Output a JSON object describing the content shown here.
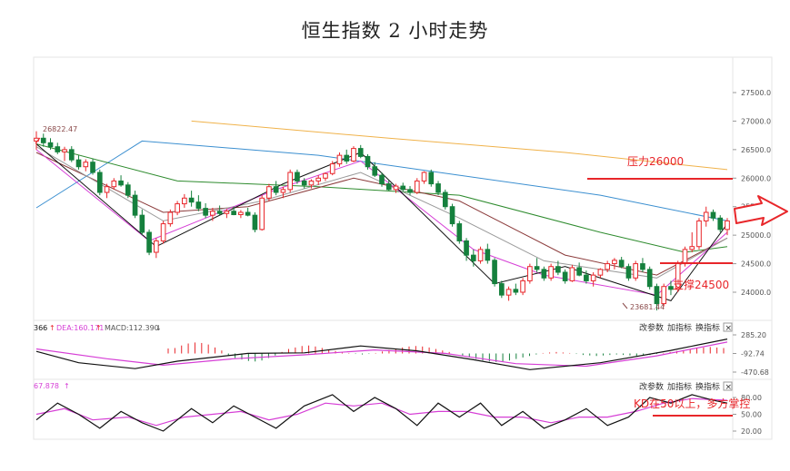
{
  "title": "恒生指数 2 小时走势",
  "colors": {
    "up": "#e8262a",
    "down": "#15803d",
    "ma_fast": "#111111",
    "ma_pink": "#d63fd6",
    "ma_brown": "#8b3a3a",
    "ma_green": "#2e8b2e",
    "ma_blue": "#3b8fd0",
    "ma_orange": "#f0b24a",
    "gray_ma": "#9a9a9a",
    "annotation": "#e8262a"
  },
  "controls": {
    "param": "改参数",
    "add": "加指标",
    "swap": "换指标",
    "close": "×"
  },
  "macd_header": {
    "dif": "366",
    "dea": "DEA:160.171",
    "macd": "MACD:112.390"
  },
  "kd_header": "67.878",
  "annotations": {
    "resistance": "压力26000",
    "support": "支撑24500",
    "kd_note": "KD在50以上，多方掌控",
    "high_label": "26822.47",
    "low_label": "23681.44"
  },
  "chart_data": [
    {
      "type": "candlestick",
      "title": "恒生指数 2 小时走势",
      "y_ticks": [
        "27500.0",
        "27000.0",
        "26500.0",
        "26000.0",
        "25500.0",
        "25000.0",
        "24500.0",
        "24000.0"
      ],
      "ylim": [
        23600,
        27950
      ],
      "grid": false,
      "annotated_high": 26822.47,
      "annotated_low": 23681.44,
      "resistance_level": 26000,
      "support_level": 24500,
      "candles": [
        [
          26650,
          26822,
          26500,
          26700
        ],
        [
          26700,
          26780,
          26550,
          26620
        ],
        [
          26620,
          26700,
          26500,
          26550
        ],
        [
          26550,
          26620,
          26420,
          26460
        ],
        [
          26460,
          26550,
          26300,
          26500
        ],
        [
          26500,
          26560,
          26280,
          26320
        ],
        [
          26320,
          26400,
          26150,
          26200
        ],
        [
          26200,
          26330,
          26120,
          26280
        ],
        [
          26280,
          26340,
          26060,
          26100
        ],
        [
          26100,
          26150,
          25700,
          25750
        ],
        [
          25750,
          25900,
          25650,
          25850
        ],
        [
          25850,
          26000,
          25800,
          25950
        ],
        [
          25950,
          26050,
          25850,
          25880
        ],
        [
          25880,
          25930,
          25650,
          25700
        ],
        [
          25700,
          25780,
          25300,
          25350
        ],
        [
          25350,
          25450,
          25000,
          25050
        ],
        [
          25050,
          25100,
          24650,
          24700
        ],
        [
          24700,
          24950,
          24600,
          24900
        ],
        [
          24900,
          25250,
          24850,
          25200
        ],
        [
          25200,
          25450,
          25150,
          25400
        ],
        [
          25400,
          25600,
          25350,
          25550
        ],
        [
          25550,
          25720,
          25480,
          25650
        ],
        [
          25650,
          25780,
          25500,
          25580
        ],
        [
          25580,
          25700,
          25420,
          25470
        ],
        [
          25470,
          25560,
          25300,
          25350
        ],
        [
          25350,
          25480,
          25250,
          25420
        ],
        [
          25420,
          25520,
          25350,
          25380
        ],
        [
          25380,
          25460,
          25300,
          25420
        ],
        [
          25420,
          25500,
          25350,
          25360
        ],
        [
          25360,
          25440,
          25300,
          25400
        ],
        [
          25400,
          25480,
          25330,
          25350
        ],
        [
          25350,
          25400,
          25050,
          25100
        ],
        [
          25100,
          25700,
          25080,
          25650
        ],
        [
          25650,
          25900,
          25600,
          25850
        ],
        [
          25850,
          25950,
          25700,
          25750
        ],
        [
          25750,
          25850,
          25650,
          25800
        ],
        [
          25800,
          26150,
          25750,
          26100
        ],
        [
          26100,
          26150,
          25900,
          25950
        ],
        [
          25950,
          26000,
          25820,
          25880
        ],
        [
          25880,
          25980,
          25820,
          25950
        ],
        [
          25950,
          26050,
          25880,
          26000
        ],
        [
          26000,
          26100,
          25950,
          26080
        ],
        [
          26080,
          26300,
          26050,
          26250
        ],
        [
          26250,
          26450,
          26200,
          26400
        ],
        [
          26400,
          26500,
          26250,
          26300
        ],
        [
          26300,
          26560,
          26280,
          26520
        ],
        [
          26520,
          26580,
          26350,
          26380
        ],
        [
          26380,
          26420,
          26150,
          26200
        ],
        [
          26200,
          26280,
          26020,
          26050
        ],
        [
          26050,
          26100,
          25850,
          25900
        ],
        [
          25900,
          25960,
          25780,
          25800
        ],
        [
          25800,
          25900,
          25740,
          25860
        ],
        [
          25860,
          25920,
          25760,
          25800
        ],
        [
          25800,
          25860,
          25700,
          25750
        ],
        [
          25750,
          26000,
          25720,
          25950
        ],
        [
          25950,
          26120,
          25900,
          26100
        ],
        [
          26100,
          26150,
          25850,
          25900
        ],
        [
          25900,
          25950,
          25700,
          25750
        ],
        [
          25750,
          25800,
          25450,
          25500
        ],
        [
          25500,
          25550,
          25150,
          25200
        ],
        [
          25200,
          25250,
          24850,
          24900
        ],
        [
          24900,
          24950,
          24550,
          24650
        ],
        [
          24650,
          24750,
          24450,
          24550
        ],
        [
          24550,
          24800,
          24500,
          24750
        ],
        [
          24750,
          24850,
          24500,
          24560
        ],
        [
          24560,
          24600,
          24100,
          24150
        ],
        [
          24150,
          24200,
          23900,
          23950
        ],
        [
          23950,
          24100,
          23850,
          24050
        ],
        [
          24050,
          24150,
          23950,
          24000
        ],
        [
          24000,
          24250,
          23950,
          24200
        ],
        [
          24200,
          24500,
          24150,
          24450
        ],
        [
          24450,
          24600,
          24350,
          24400
        ],
        [
          24400,
          24450,
          24200,
          24250
        ],
        [
          24250,
          24500,
          24200,
          24450
        ],
        [
          24450,
          24550,
          24300,
          24350
        ],
        [
          24350,
          24400,
          24150,
          24200
        ],
        [
          24200,
          24480,
          24180,
          24430
        ],
        [
          24430,
          24520,
          24280,
          24300
        ],
        [
          24300,
          24380,
          24150,
          24200
        ],
        [
          24200,
          24350,
          24100,
          24300
        ],
        [
          24300,
          24420,
          24250,
          24400
        ],
        [
          24400,
          24550,
          24350,
          24500
        ],
        [
          24500,
          24600,
          24400,
          24560
        ],
        [
          24560,
          24620,
          24420,
          24450
        ],
        [
          24450,
          24500,
          24200,
          24250
        ],
        [
          24250,
          24550,
          24200,
          24500
        ],
        [
          24500,
          24600,
          24350,
          24400
        ],
        [
          24400,
          24450,
          24050,
          24100
        ],
        [
          24100,
          24150,
          23681,
          23800
        ],
        [
          23800,
          24150,
          23750,
          24100
        ],
        [
          24100,
          24200,
          23950,
          24050
        ],
        [
          24050,
          24550,
          24000,
          24500
        ],
        [
          24500,
          24800,
          24450,
          24750
        ],
        [
          24750,
          25050,
          24700,
          24800
        ],
        [
          24800,
          25300,
          24750,
          25250
        ],
        [
          25250,
          25500,
          25150,
          25400
        ],
        [
          25400,
          25450,
          25250,
          25300
        ],
        [
          25300,
          25350,
          25050,
          25100
        ],
        [
          25100,
          25300,
          25000,
          25250
        ]
      ],
      "moving_averages": [
        {
          "color": "#3b8fd0",
          "values": [
            [
              0,
              25480
            ],
            [
              15,
              26650
            ],
            [
              40,
              26400
            ],
            [
              60,
              26050
            ],
            [
              80,
              25700
            ],
            [
              98,
              25250
            ]
          ]
        },
        {
          "color": "#f0b24a",
          "values": [
            [
              22,
              27000
            ],
            [
              50,
              26700
            ],
            [
              75,
              26450
            ],
            [
              98,
              26150
            ]
          ]
        },
        {
          "color": "#2e8b2e",
          "values": [
            [
              0,
              26600
            ],
            [
              20,
              25950
            ],
            [
              40,
              25850
            ],
            [
              60,
              25700
            ],
            [
              80,
              25050
            ],
            [
              92,
              24700
            ],
            [
              98,
              24800
            ]
          ]
        },
        {
          "color": "#8b3a3a",
          "values": [
            [
              0,
              26450
            ],
            [
              18,
              25400
            ],
            [
              30,
              25500
            ],
            [
              45,
              26000
            ],
            [
              60,
              25600
            ],
            [
              75,
              24650
            ],
            [
              88,
              24300
            ],
            [
              98,
              24950
            ]
          ]
        },
        {
          "color": "#9a9a9a",
          "values": [
            [
              0,
              26550
            ],
            [
              18,
              25250
            ],
            [
              32,
              25600
            ],
            [
              46,
              26100
            ],
            [
              60,
              25300
            ],
            [
              72,
              24550
            ],
            [
              88,
              24250
            ],
            [
              98,
              24950
            ]
          ]
        },
        {
          "color": "#d63fd6",
          "values": [
            [
              0,
              26500
            ],
            [
              16,
              24900
            ],
            [
              34,
              25800
            ],
            [
              46,
              26300
            ],
            [
              62,
              24750
            ],
            [
              72,
              24300
            ],
            [
              88,
              23950
            ],
            [
              98,
              25050
            ]
          ]
        },
        {
          "color": "#111111",
          "values": [
            [
              0,
              26600
            ],
            [
              17,
              24800
            ],
            [
              35,
              25900
            ],
            [
              46,
              26450
            ],
            [
              65,
              24150
            ],
            [
              75,
              24450
            ],
            [
              90,
              23850
            ],
            [
              98,
              25200
            ]
          ]
        }
      ]
    },
    {
      "type": "bar",
      "title": "MACD",
      "y_ticks": [
        "285.20",
        "-92.74",
        "-470.68"
      ],
      "ylim": [
        -470.68,
        285.2
      ],
      "dif": [
        [
          0,
          -50
        ],
        [
          6,
          -280
        ],
        [
          14,
          -400
        ],
        [
          20,
          -250
        ],
        [
          30,
          -90
        ],
        [
          38,
          -80
        ],
        [
          46,
          60
        ],
        [
          54,
          -40
        ],
        [
          62,
          -220
        ],
        [
          70,
          -420
        ],
        [
          80,
          -280
        ],
        [
          90,
          -30
        ],
        [
          98,
          200
        ]
      ],
      "dea": [
        [
          0,
          0
        ],
        [
          10,
          -200
        ],
        [
          18,
          -330
        ],
        [
          28,
          -200
        ],
        [
          38,
          -120
        ],
        [
          48,
          -20
        ],
        [
          58,
          -90
        ],
        [
          68,
          -300
        ],
        [
          78,
          -350
        ],
        [
          88,
          -140
        ],
        [
          98,
          140
        ]
      ],
      "histogram": [
        0.5,
        0.55,
        0.8,
        1,
        1.1,
        1.05,
        0.9,
        0.6,
        0.3,
        -0.2,
        -0.45,
        -0.6,
        -0.75,
        -0.8,
        -0.7,
        -0.45,
        -0.2,
        0.15,
        0.45,
        0.6,
        0.75,
        0.8,
        0.7,
        0.55,
        0.4,
        0.25,
        0.15,
        0.05,
        -0.05,
        -0.1,
        -0.05,
        0.05,
        0.2,
        0.35,
        0.5,
        0.6,
        0.7,
        0.75,
        0.7,
        0.6,
        0.45,
        0.3,
        0.15,
        0,
        -0.2,
        -0.4,
        -0.55,
        -0.7,
        -0.8,
        -0.85,
        -0.8,
        -0.7,
        -0.55,
        -0.4,
        -0.25,
        -0.1,
        0.05,
        0.1,
        0.15,
        0.1,
        0.05,
        -0.05,
        -0.15,
        -0.2,
        -0.25,
        -0.2,
        -0.15,
        -0.1,
        -0.15,
        -0.2,
        -0.25,
        -0.2,
        -0.15,
        -0.05,
        0.05,
        0.15,
        0.25,
        0.35,
        0.45,
        0.55,
        0.6,
        0.65,
        0.6,
        0.55
      ]
    },
    {
      "type": "line",
      "title": "KD",
      "y_ticks": [
        "80.00",
        "50.00",
        "20.00"
      ],
      "ylim": [
        10,
        92
      ],
      "k": [
        [
          0,
          40
        ],
        [
          3,
          70
        ],
        [
          6,
          50
        ],
        [
          9,
          25
        ],
        [
          12,
          55
        ],
        [
          15,
          35
        ],
        [
          18,
          20
        ],
        [
          22,
          60
        ],
        [
          25,
          35
        ],
        [
          28,
          65
        ],
        [
          31,
          45
        ],
        [
          34,
          25
        ],
        [
          38,
          65
        ],
        [
          42,
          85
        ],
        [
          45,
          55
        ],
        [
          48,
          80
        ],
        [
          51,
          60
        ],
        [
          54,
          30
        ],
        [
          57,
          70
        ],
        [
          60,
          45
        ],
        [
          63,
          70
        ],
        [
          66,
          30
        ],
        [
          69,
          55
        ],
        [
          72,
          25
        ],
        [
          75,
          40
        ],
        [
          78,
          60
        ],
        [
          81,
          30
        ],
        [
          84,
          45
        ],
        [
          87,
          80
        ],
        [
          90,
          70
        ],
        [
          93,
          85
        ],
        [
          96,
          75
        ],
        [
          98,
          70
        ]
      ],
      "d": [
        [
          0,
          50
        ],
        [
          4,
          60
        ],
        [
          8,
          40
        ],
        [
          13,
          45
        ],
        [
          17,
          30
        ],
        [
          21,
          45
        ],
        [
          25,
          50
        ],
        [
          29,
          55
        ],
        [
          33,
          40
        ],
        [
          37,
          50
        ],
        [
          41,
          70
        ],
        [
          45,
          65
        ],
        [
          49,
          70
        ],
        [
          53,
          50
        ],
        [
          57,
          55
        ],
        [
          61,
          55
        ],
        [
          65,
          45
        ],
        [
          69,
          45
        ],
        [
          73,
          35
        ],
        [
          77,
          45
        ],
        [
          81,
          45
        ],
        [
          85,
          55
        ],
        [
          89,
          70
        ],
        [
          93,
          78
        ],
        [
          98,
          75
        ]
      ]
    }
  ]
}
